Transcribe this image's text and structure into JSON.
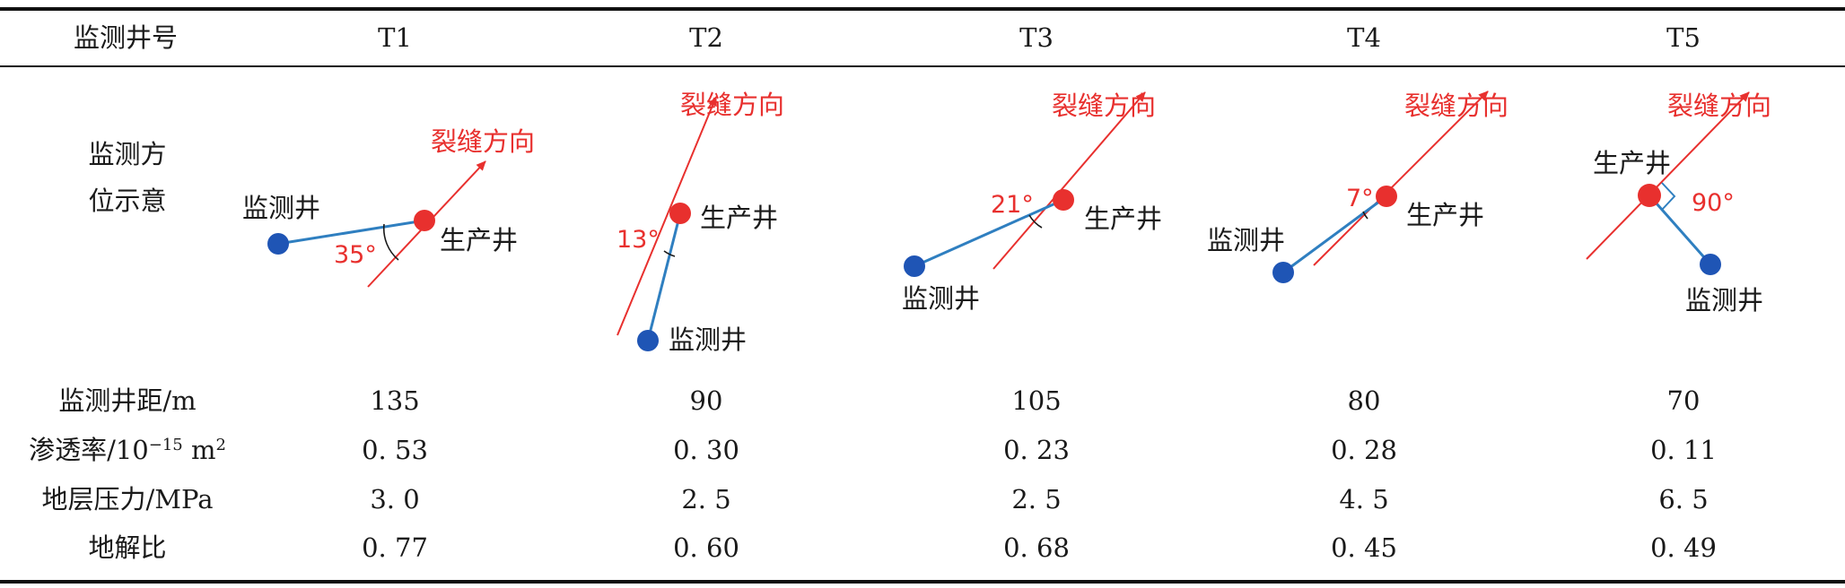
{
  "table": {
    "header_label": "监测井号",
    "wells": [
      "T1",
      "T2",
      "T3",
      "T4",
      "T5"
    ],
    "diagram_row_label_line1": "监测方",
    "diagram_row_label_line2": "位示意",
    "rows": [
      {
        "label": "监测井距/m",
        "values": [
          "135",
          "90",
          "105",
          "80",
          "70"
        ]
      },
      {
        "label_main": "渗透率/10",
        "label_sup1": "−15",
        "label_unit": " m",
        "label_sup2": "2",
        "values": [
          "0. 53",
          "0. 30",
          "0. 23",
          "0. 28",
          "0. 11"
        ]
      },
      {
        "label": "地层压力/MPa",
        "values": [
          "3. 0",
          "2. 5",
          "2. 5",
          "4. 5",
          "6. 5"
        ]
      },
      {
        "label": "地解比",
        "values": [
          "0. 77",
          "0. 60",
          "0. 68",
          "0. 45",
          "0. 49"
        ]
      }
    ]
  },
  "diagrams": {
    "fracture_label": "裂缝方向",
    "monitor_label": "监测井",
    "production_label": "生产井",
    "angles": [
      "35°",
      "13°",
      "21°",
      "7°",
      "90°"
    ],
    "colors": {
      "fracture": "#e8302e",
      "monitor_line": "#2f7fc0",
      "monitor_well": "#1f55b5",
      "production_well": "#e8302e",
      "label_text": "#1a1a1a",
      "angle_arc": "#1a1a1a"
    }
  }
}
